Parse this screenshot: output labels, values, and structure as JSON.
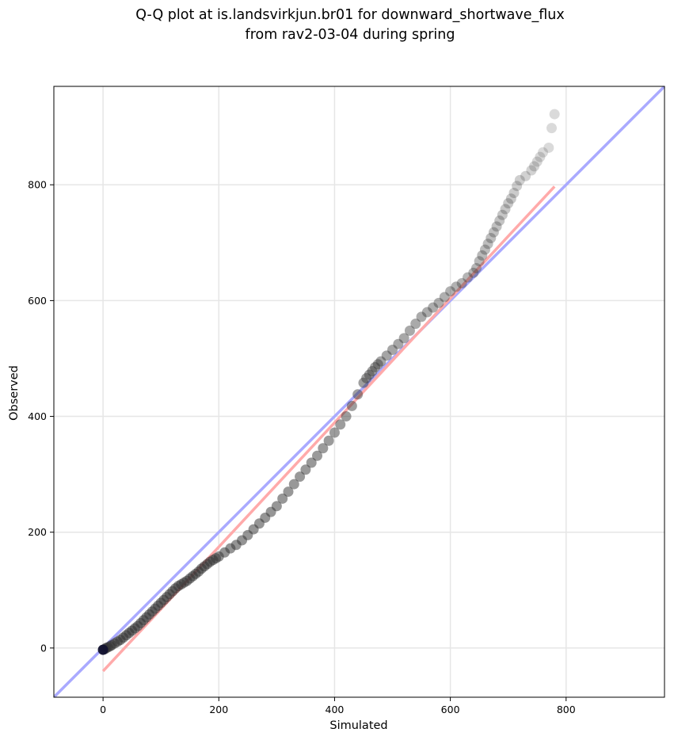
{
  "chart_data": {
    "type": "scatter",
    "title_lines": [
      "Q-Q plot at is.landsvirkjun.br01 for downward_shortwave_flux",
      "from rav2-03-04 during spring"
    ],
    "xlabel": "Simulated",
    "ylabel": "Observed",
    "xlim": [
      -85,
      970
    ],
    "ylim": [
      -85,
      970
    ],
    "xticks": [
      0,
      200,
      400,
      600,
      800
    ],
    "yticks": [
      0,
      200,
      400,
      600,
      800
    ],
    "grid": true,
    "colors": {
      "points": "#333333",
      "identity_line": "#aaaaff",
      "fit_line": "#ffaaaa"
    },
    "identity_line": {
      "from": [
        -85,
        -85
      ],
      "to": [
        970,
        970
      ]
    },
    "fit_line": {
      "from": [
        0,
        -40
      ],
      "to": [
        780,
        797
      ]
    },
    "quantiles": {
      "x": [
        0,
        3,
        5,
        8,
        12,
        15,
        20,
        25,
        30,
        35,
        40,
        45,
        50,
        55,
        60,
        65,
        70,
        75,
        80,
        85,
        90,
        95,
        100,
        105,
        110,
        115,
        120,
        125,
        130,
        135,
        140,
        145,
        150,
        155,
        160,
        165,
        170,
        175,
        180,
        185,
        190,
        195,
        200,
        210,
        220,
        230,
        240,
        250,
        260,
        270,
        280,
        290,
        300,
        310,
        320,
        330,
        340,
        350,
        360,
        370,
        380,
        390,
        400,
        410,
        420,
        430,
        440,
        450,
        455,
        460,
        465,
        470,
        475,
        480,
        490,
        500,
        510,
        520,
        530,
        540,
        550,
        560,
        570,
        580,
        590,
        600,
        610,
        620,
        630,
        640,
        645,
        650,
        655,
        660,
        665,
        670,
        675,
        680,
        685,
        690,
        695,
        700,
        705,
        710,
        715,
        720,
        730,
        740,
        745,
        750,
        755,
        760,
        770,
        775,
        780
      ],
      "y": [
        -3,
        -2,
        0,
        1,
        3,
        5,
        8,
        11,
        14,
        18,
        22,
        26,
        30,
        34,
        38,
        43,
        48,
        53,
        58,
        63,
        68,
        73,
        78,
        83,
        88,
        93,
        98,
        103,
        107,
        110,
        113,
        116,
        120,
        124,
        128,
        132,
        137,
        141,
        145,
        149,
        152,
        155,
        158,
        165,
        172,
        178,
        186,
        195,
        205,
        215,
        225,
        235,
        245,
        258,
        270,
        283,
        296,
        308,
        320,
        332,
        345,
        358,
        372,
        386,
        400,
        418,
        438,
        458,
        466,
        472,
        478,
        485,
        490,
        495,
        505,
        515,
        525,
        535,
        548,
        560,
        572,
        580,
        588,
        596,
        606,
        616,
        624,
        630,
        640,
        648,
        656,
        668,
        678,
        688,
        698,
        708,
        718,
        728,
        738,
        748,
        758,
        768,
        776,
        786,
        798,
        808,
        815,
        825,
        832,
        840,
        848,
        856,
        864,
        898,
        922
      ]
    }
  }
}
